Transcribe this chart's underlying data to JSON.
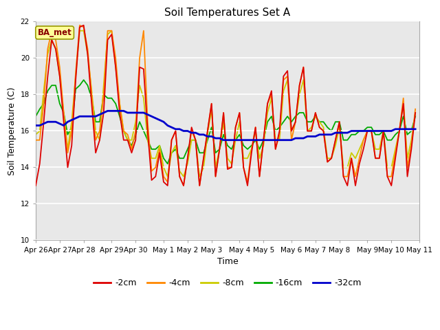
{
  "title": "Soil Temperatures Set A",
  "xlabel": "Time",
  "ylabel": "Soil Temperature (C)",
  "ylim": [
    10,
    22
  ],
  "yticks": [
    10,
    12,
    14,
    16,
    18,
    20,
    22
  ],
  "annotation": "BA_met",
  "plot_bg": "#e8e8e8",
  "fig_bg": "#ffffff",
  "legend_entries": [
    "-2cm",
    "-4cm",
    "-8cm",
    "-16cm",
    "-32cm"
  ],
  "legend_colors": [
    "#dd0000",
    "#ff8800",
    "#cccc00",
    "#00aa00",
    "#0000cc"
  ],
  "x_labels": [
    "Apr 26",
    "Apr 27",
    "Apr 28",
    "Apr 29",
    "Apr 30",
    "May 1",
    "May 2",
    "May 3",
    "May 4",
    "May 5",
    "May 6",
    "May 7",
    "May 8",
    "May 9",
    "May 10",
    "May 11"
  ],
  "series": {
    "d2cm": [
      13.0,
      14.2,
      16.5,
      19.0,
      21.0,
      20.5,
      19.0,
      16.5,
      14.0,
      15.2,
      18.8,
      21.7,
      21.8,
      20.2,
      17.5,
      14.8,
      15.5,
      17.0,
      21.0,
      21.3,
      19.5,
      17.0,
      15.5,
      15.5,
      14.8,
      15.5,
      19.5,
      19.4,
      16.0,
      13.3,
      13.5,
      14.8,
      13.2,
      13.0,
      15.5,
      16.0,
      13.5,
      13.0,
      14.5,
      16.2,
      15.5,
      13.0,
      14.5,
      16.0,
      17.5,
      13.5,
      15.0,
      17.0,
      13.9,
      14.0,
      16.2,
      17.0,
      14.0,
      13.0,
      14.8,
      16.2,
      13.5,
      15.5,
      17.5,
      18.2,
      15.0,
      16.0,
      19.0,
      19.3,
      16.0,
      16.5,
      18.5,
      19.5,
      16.0,
      16.0,
      17.0,
      16.2,
      16.0,
      14.3,
      14.5,
      15.5,
      16.5,
      13.5,
      13.0,
      14.5,
      13.0,
      14.2,
      15.0,
      16.0,
      16.0,
      14.5,
      14.5,
      16.0,
      13.5,
      13.0,
      14.5,
      16.0,
      17.5,
      13.5,
      15.0,
      17.0
    ],
    "d4cm": [
      15.5,
      15.5,
      17.5,
      20.5,
      21.5,
      21.0,
      19.5,
      17.0,
      14.8,
      16.0,
      19.2,
      21.8,
      21.7,
      20.5,
      18.0,
      15.5,
      16.0,
      18.0,
      21.5,
      21.5,
      20.0,
      17.5,
      16.0,
      15.8,
      15.0,
      16.0,
      20.0,
      21.5,
      16.5,
      13.8,
      14.0,
      15.0,
      13.5,
      13.2,
      15.5,
      16.0,
      13.5,
      13.0,
      14.5,
      16.0,
      15.5,
      13.0,
      14.5,
      16.0,
      17.5,
      13.5,
      15.0,
      17.0,
      14.0,
      14.0,
      16.2,
      17.0,
      14.0,
      13.2,
      15.0,
      16.2,
      13.5,
      15.5,
      17.5,
      18.0,
      15.0,
      15.8,
      18.8,
      19.0,
      15.5,
      16.5,
      18.5,
      19.5,
      16.0,
      16.0,
      17.0,
      16.2,
      16.0,
      14.3,
      14.5,
      15.5,
      16.5,
      13.5,
      13.5,
      14.5,
      13.5,
      14.5,
      15.5,
      16.0,
      16.0,
      14.5,
      14.5,
      16.0,
      13.5,
      13.5,
      14.8,
      16.0,
      17.8,
      14.0,
      15.2,
      17.2
    ],
    "d8cm": [
      15.8,
      16.0,
      18.2,
      20.2,
      21.0,
      20.5,
      19.0,
      17.0,
      15.0,
      16.5,
      19.0,
      21.5,
      21.5,
      20.2,
      18.2,
      16.0,
      15.5,
      18.5,
      21.3,
      21.5,
      19.5,
      17.5,
      16.0,
      15.5,
      15.5,
      16.5,
      18.5,
      17.8,
      15.5,
      14.5,
      14.5,
      15.2,
      14.0,
      13.5,
      14.8,
      15.2,
      13.8,
      13.5,
      14.2,
      15.5,
      15.5,
      13.5,
      14.0,
      15.8,
      17.2,
      14.0,
      15.0,
      16.5,
      14.5,
      14.2,
      15.5,
      16.5,
      14.5,
      14.5,
      15.0,
      16.0,
      14.5,
      15.2,
      17.0,
      17.8,
      15.5,
      15.5,
      18.2,
      18.8,
      16.0,
      16.5,
      18.0,
      18.8,
      16.0,
      16.2,
      16.8,
      16.5,
      16.2,
      14.5,
      14.5,
      15.2,
      16.2,
      14.0,
      14.0,
      14.8,
      14.5,
      15.0,
      15.5,
      16.0,
      16.0,
      15.0,
      15.0,
      16.0,
      14.0,
      14.0,
      15.0,
      16.0,
      17.5,
      14.5,
      15.5,
      17.0
    ],
    "d16cm": [
      16.8,
      17.2,
      17.5,
      18.2,
      18.5,
      18.5,
      17.5,
      17.0,
      15.8,
      16.2,
      18.3,
      18.5,
      18.8,
      18.5,
      17.8,
      16.5,
      16.5,
      18.0,
      17.8,
      17.8,
      17.5,
      16.8,
      16.0,
      15.5,
      15.2,
      15.8,
      16.5,
      16.0,
      15.5,
      15.0,
      15.0,
      15.2,
      14.5,
      14.2,
      14.8,
      15.0,
      14.5,
      14.5,
      15.0,
      15.5,
      15.5,
      14.8,
      14.8,
      15.5,
      16.2,
      14.8,
      15.0,
      15.8,
      15.2,
      15.0,
      15.5,
      15.8,
      15.2,
      15.0,
      15.2,
      15.5,
      15.0,
      15.5,
      16.5,
      16.8,
      16.0,
      16.2,
      16.5,
      16.8,
      16.5,
      16.8,
      17.0,
      17.0,
      16.5,
      16.5,
      16.8,
      16.5,
      16.5,
      16.2,
      16.0,
      16.5,
      16.5,
      15.5,
      15.5,
      15.8,
      15.8,
      16.0,
      16.0,
      16.2,
      16.2,
      15.8,
      15.8,
      16.0,
      15.5,
      15.5,
      15.8,
      16.0,
      16.8,
      15.8,
      16.0,
      16.8
    ],
    "d32cm": [
      16.3,
      16.3,
      16.4,
      16.5,
      16.5,
      16.5,
      16.4,
      16.3,
      16.5,
      16.6,
      16.7,
      16.8,
      16.8,
      16.8,
      16.8,
      16.8,
      16.9,
      17.0,
      17.1,
      17.1,
      17.1,
      17.1,
      17.1,
      17.0,
      17.0,
      17.0,
      17.0,
      17.0,
      16.9,
      16.8,
      16.7,
      16.6,
      16.5,
      16.3,
      16.2,
      16.1,
      16.1,
      16.0,
      16.0,
      15.9,
      15.9,
      15.8,
      15.8,
      15.7,
      15.7,
      15.6,
      15.6,
      15.5,
      15.5,
      15.5,
      15.5,
      15.5,
      15.5,
      15.5,
      15.5,
      15.5,
      15.5,
      15.5,
      15.5,
      15.5,
      15.5,
      15.5,
      15.5,
      15.5,
      15.5,
      15.6,
      15.6,
      15.6,
      15.7,
      15.7,
      15.7,
      15.8,
      15.8,
      15.8,
      15.8,
      15.9,
      15.9,
      15.9,
      15.9,
      16.0,
      16.0,
      16.0,
      16.0,
      16.0,
      16.0,
      16.0,
      16.0,
      16.0,
      16.0,
      16.0,
      16.1,
      16.1,
      16.1,
      16.1,
      16.1,
      16.1
    ]
  }
}
